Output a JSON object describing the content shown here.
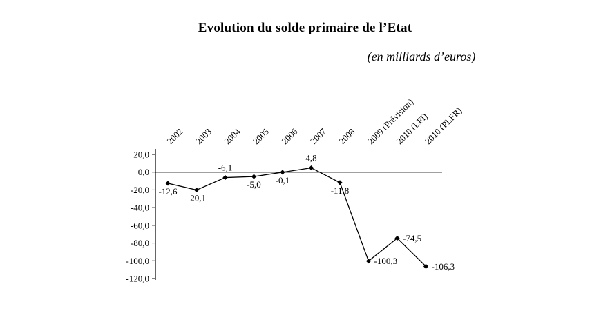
{
  "chart_data": {
    "type": "line",
    "title": "Evolution du solde primaire de l’Etat",
    "subtitle": "(en milliards d’euros)",
    "categories": [
      "2002",
      "2003",
      "2004",
      "2005",
      "2006",
      "2007",
      "2008",
      "2009 (Prévision)",
      "2010 (LFI)",
      "2010 (PLFR)"
    ],
    "values": [
      -12.6,
      -20.1,
      -6.1,
      -5.0,
      -0.1,
      4.8,
      -11.8,
      -100.3,
      -74.5,
      -106.3
    ],
    "value_labels": [
      "-12,6",
      "-20,1",
      "-6,1",
      "-5,0",
      "-0,1",
      "4,8",
      "-11,8",
      "-100,3",
      "-74,5",
      "-106,3"
    ],
    "label_placements": [
      "below",
      "below",
      "above",
      "below",
      "below",
      "above",
      "below",
      "right",
      "right",
      "right"
    ],
    "ylim": [
      -120,
      20
    ],
    "ytick_step": 20,
    "ytick_labels": [
      "20,0",
      "0,0",
      "-20,0",
      "-40,0",
      "-60,0",
      "-80,0",
      "-100,0",
      "-120,0"
    ],
    "grid": false,
    "legend": "none",
    "line_color": "#000000",
    "marker": "diamond",
    "marker_color": "#000000",
    "background": "#ffffff"
  }
}
